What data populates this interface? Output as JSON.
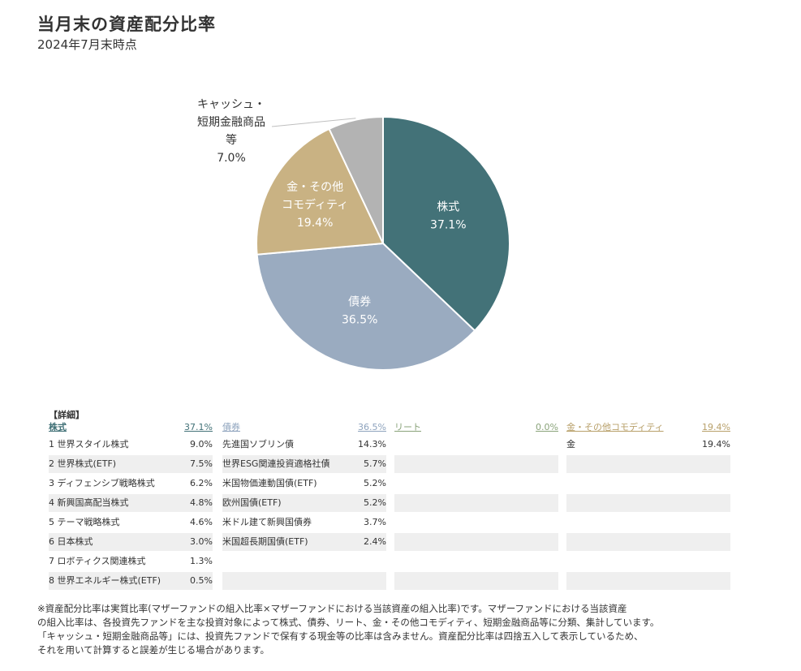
{
  "title": "当月末の資産配分比率",
  "subtitle": "2024年7月末時点",
  "chart_data": {
    "type": "pie",
    "slices": [
      {
        "label": "株式",
        "value": 37.1,
        "display": "37.1%",
        "color": "#437278"
      },
      {
        "label": "債券",
        "value": 36.5,
        "display": "36.5%",
        "color": "#9aabc0"
      },
      {
        "label": "金・その他\nコモディティ",
        "value": 19.4,
        "display": "19.4%",
        "color": "#c9b283"
      },
      {
        "label": "キャッシュ・\n短期金融商品\n等",
        "value": 7.0,
        "display": "7.0%",
        "color": "#b3b3b3"
      }
    ]
  },
  "details": {
    "heading": "【詳細】",
    "columns": [
      {
        "name": "株式",
        "total": "37.1%",
        "color": "#437278",
        "items": [
          {
            "name": "1 世界スタイル株式",
            "value": "9.0%"
          },
          {
            "name": "2 世界株式(ETF)",
            "value": "7.5%"
          },
          {
            "name": "3 ディフェンシブ戦略株式",
            "value": "6.2%"
          },
          {
            "name": "4 新興国高配当株式",
            "value": "4.8%"
          },
          {
            "name": "5 テーマ戦略株式",
            "value": "4.6%"
          },
          {
            "name": "6 日本株式",
            "value": "3.0%"
          },
          {
            "name": "7 ロボティクス関連株式",
            "value": "1.3%"
          },
          {
            "name": "8 世界エネルギー株式(ETF)",
            "value": "0.5%"
          }
        ]
      },
      {
        "name": "債券",
        "total": "36.5%",
        "color": "#8ea3bd",
        "items": [
          {
            "name": "先進国ソブリン債",
            "value": "14.3%"
          },
          {
            "name": "世界ESG関連投資適格社債",
            "value": "5.7%"
          },
          {
            "name": "米国物価連動国債(ETF)",
            "value": "5.2%"
          },
          {
            "name": "欧州国債(ETF)",
            "value": "5.2%"
          },
          {
            "name": "米ドル建て新興国債券",
            "value": "3.7%"
          },
          {
            "name": "米国超長期国債(ETF)",
            "value": "2.4%"
          }
        ]
      },
      {
        "name": "リート",
        "total": "0.0%",
        "color": "#8aa37a",
        "items": []
      },
      {
        "name": "金・その他コモディティ",
        "total": "19.4%",
        "color": "#b8a06a",
        "items": [
          {
            "name": "金",
            "value": "19.4%"
          }
        ]
      }
    ]
  },
  "note": [
    "※資産配分比率は実質比率(マザーファンドの組入比率×マザーファンドにおける当該資産の組入比率)です。マザーファンドにおける当該資産",
    "の組入比率は、各投資先ファンドを主な投資対象によって株式、債券、リート、金・その他コモディティ、短期金融商品等に分類、集計しています。",
    "「キャッシュ・短期金融商品等」には、投資先ファンドで保有する現金等の比率は含みません。資産配分比率は四捨五入して表示しているため、",
    "それを用いて計算すると誤差が生じる場合があります。"
  ]
}
